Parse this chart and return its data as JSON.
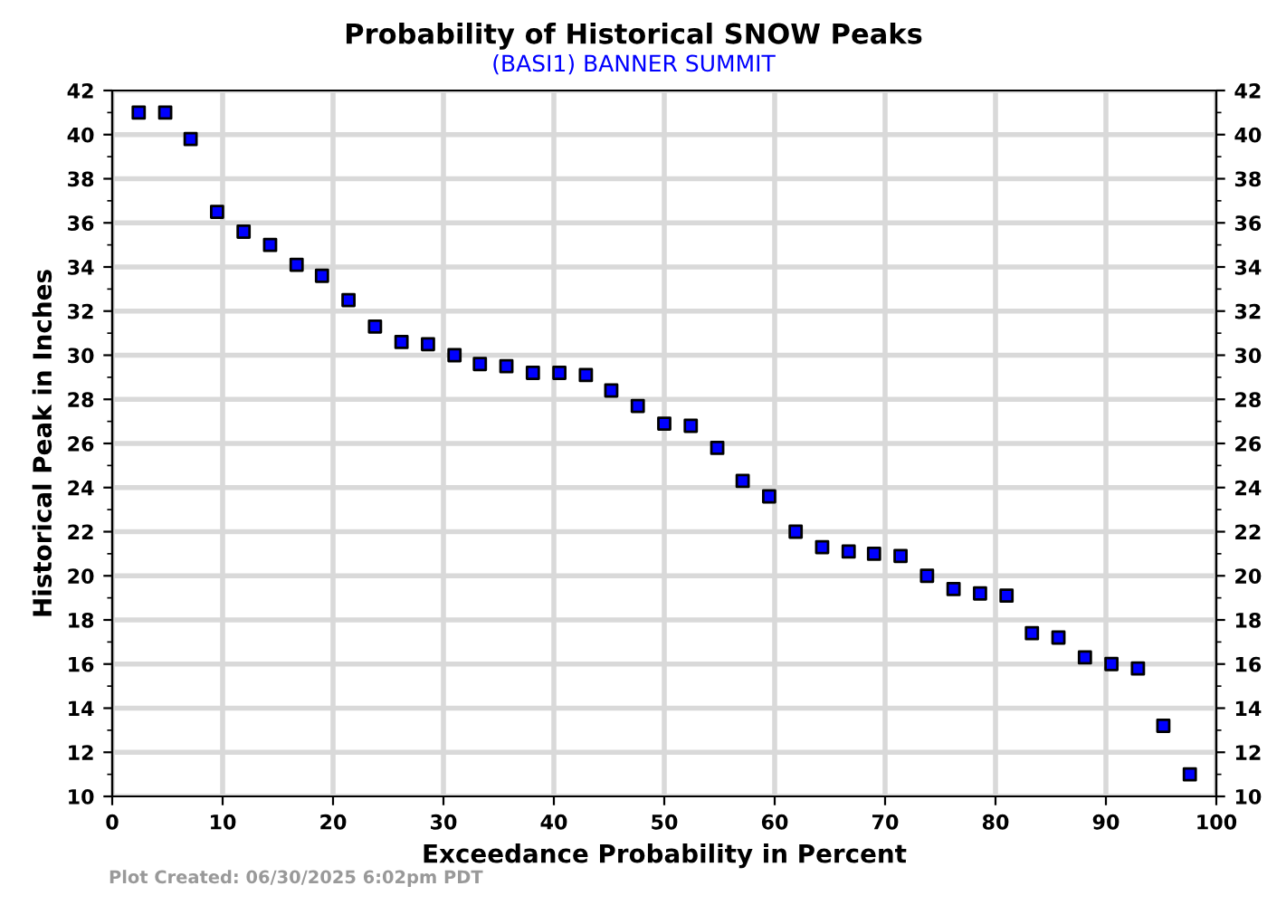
{
  "chart_data": {
    "type": "scatter",
    "title": "Probability of Historical SNOW Peaks",
    "subtitle": "(BASI1) BANNER SUMMIT",
    "xlabel": "Exceedance Probability in Percent",
    "ylabel": "Historical Peak in Inches",
    "annotations": [
      "Plot Created: 06/30/2025 6:02pm PDT"
    ],
    "x": [
      2.4,
      4.8,
      7.1,
      9.5,
      11.9,
      14.3,
      16.7,
      19.0,
      21.4,
      23.8,
      26.2,
      28.6,
      31.0,
      33.3,
      35.7,
      38.1,
      40.5,
      42.9,
      45.2,
      47.6,
      50.0,
      52.4,
      54.8,
      57.1,
      59.5,
      61.9,
      64.3,
      66.7,
      69.0,
      71.4,
      73.8,
      76.2,
      78.6,
      81.0,
      83.3,
      85.7,
      88.1,
      90.5,
      92.9,
      95.2,
      97.6
    ],
    "series": [
      {
        "color": "#0000ff",
        "values": [
          41,
          41,
          39.8,
          36.5,
          35.6,
          35.0,
          34.1,
          33.6,
          32.5,
          31.3,
          30.6,
          30.5,
          30.0,
          29.6,
          29.5,
          29.2,
          29.2,
          29.1,
          28.4,
          27.7,
          26.9,
          26.8,
          25.8,
          24.3,
          23.6,
          22.0,
          21.3,
          21.1,
          21.0,
          20.9,
          20.0,
          19.4,
          19.2,
          19.1,
          17.4,
          17.2,
          16.3,
          16.0,
          15.8,
          13.2,
          11.0
        ]
      }
    ],
    "xlim": [
      0,
      100
    ],
    "xticks": [
      0,
      10,
      20,
      30,
      40,
      50,
      60,
      70,
      80,
      90,
      100
    ],
    "ylim": [
      10,
      42
    ],
    "yticks": [
      10,
      12,
      14,
      16,
      18,
      20,
      22,
      24,
      26,
      28,
      30,
      32,
      34,
      36,
      38,
      40,
      42
    ],
    "y2lim": [
      10,
      42
    ],
    "y2ticks": [
      10,
      12,
      14,
      16,
      18,
      20,
      22,
      24,
      26,
      28,
      30,
      32,
      34,
      36,
      38,
      40,
      42
    ],
    "grid": true,
    "marker": "square",
    "legend": false
  }
}
